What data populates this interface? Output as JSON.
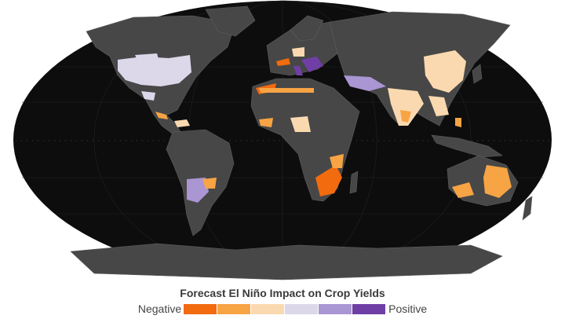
{
  "legend": {
    "title": "Forecast El Niño Impact on Crop Yields",
    "negative_label": "Negative",
    "positive_label": "Positive",
    "scale_colors": [
      "#f26b0f",
      "#f7a445",
      "#fbd9b0",
      "#dcd8ea",
      "#a996d3",
      "#6f3fa5"
    ]
  },
  "map_colors": {
    "ocean": "#0d0d0d",
    "land": "#474747",
    "land_edge": "#5e5e5e"
  }
}
